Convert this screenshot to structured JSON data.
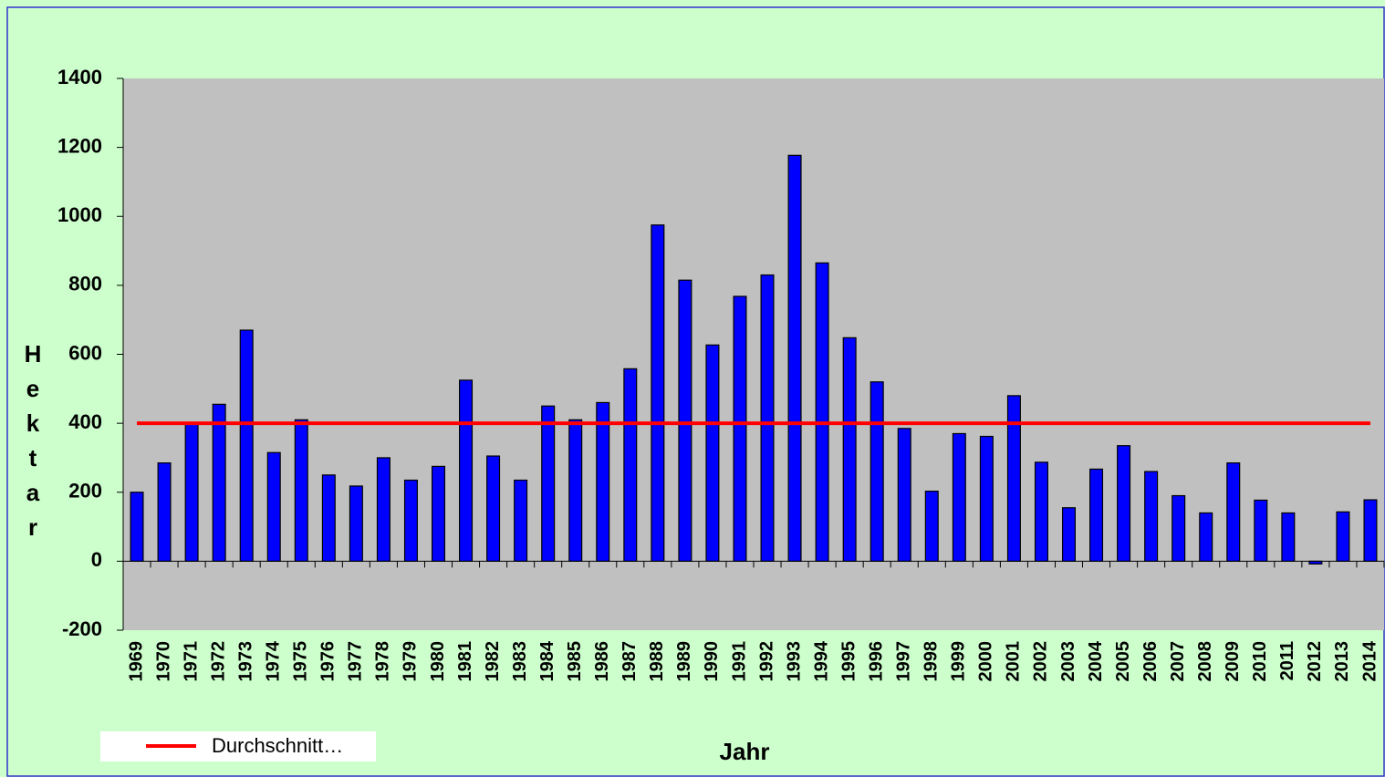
{
  "chart_data": {
    "type": "bar",
    "y_label": "Hektar",
    "x_label": "Jahr",
    "categories": [
      "1969",
      "1970",
      "1971",
      "1972",
      "1973",
      "1974",
      "1975",
      "1976",
      "1977",
      "1978",
      "1979",
      "1980",
      "1981",
      "1982",
      "1983",
      "1984",
      "1985",
      "1986",
      "1987",
      "1988",
      "1989",
      "1990",
      "1991",
      "1992",
      "1993",
      "1994",
      "1995",
      "1996",
      "1997",
      "1998",
      "1999",
      "2000",
      "2001",
      "2002",
      "2003",
      "2004",
      "2005",
      "2006",
      "2007",
      "2008",
      "2009",
      "2010",
      "2011",
      "2012",
      "2013",
      "2014"
    ],
    "series": [
      {
        "type": "bar",
        "color": "#0000ff",
        "values": [
          200,
          285,
          400,
          455,
          670,
          315,
          410,
          250,
          218,
          300,
          235,
          275,
          525,
          305,
          235,
          450,
          410,
          460,
          558,
          975,
          815,
          627,
          768,
          830,
          1177,
          865,
          648,
          520,
          385,
          203,
          370,
          362,
          480,
          287,
          155,
          267,
          335,
          260,
          190,
          140,
          285,
          177,
          140,
          -8,
          143,
          178
        ]
      },
      {
        "type": "line",
        "name": "Durchschnitt…",
        "color": "#ff0000",
        "values": [
          400,
          400,
          400,
          400,
          400,
          400,
          400,
          400,
          400,
          400,
          400,
          400,
          400,
          400,
          400,
          400,
          400,
          400,
          400,
          400,
          400,
          400,
          400,
          400,
          400,
          400,
          400,
          400,
          400,
          400,
          400,
          400,
          400,
          400,
          400,
          400,
          400,
          400,
          400,
          400,
          400,
          400,
          400,
          400,
          400,
          400
        ]
      }
    ],
    "ylim": [
      -200,
      1400
    ],
    "yticks": [
      -200,
      0,
      200,
      400,
      600,
      800,
      1000,
      1200,
      1400
    ],
    "grid": false,
    "legend": "bottom-left"
  }
}
